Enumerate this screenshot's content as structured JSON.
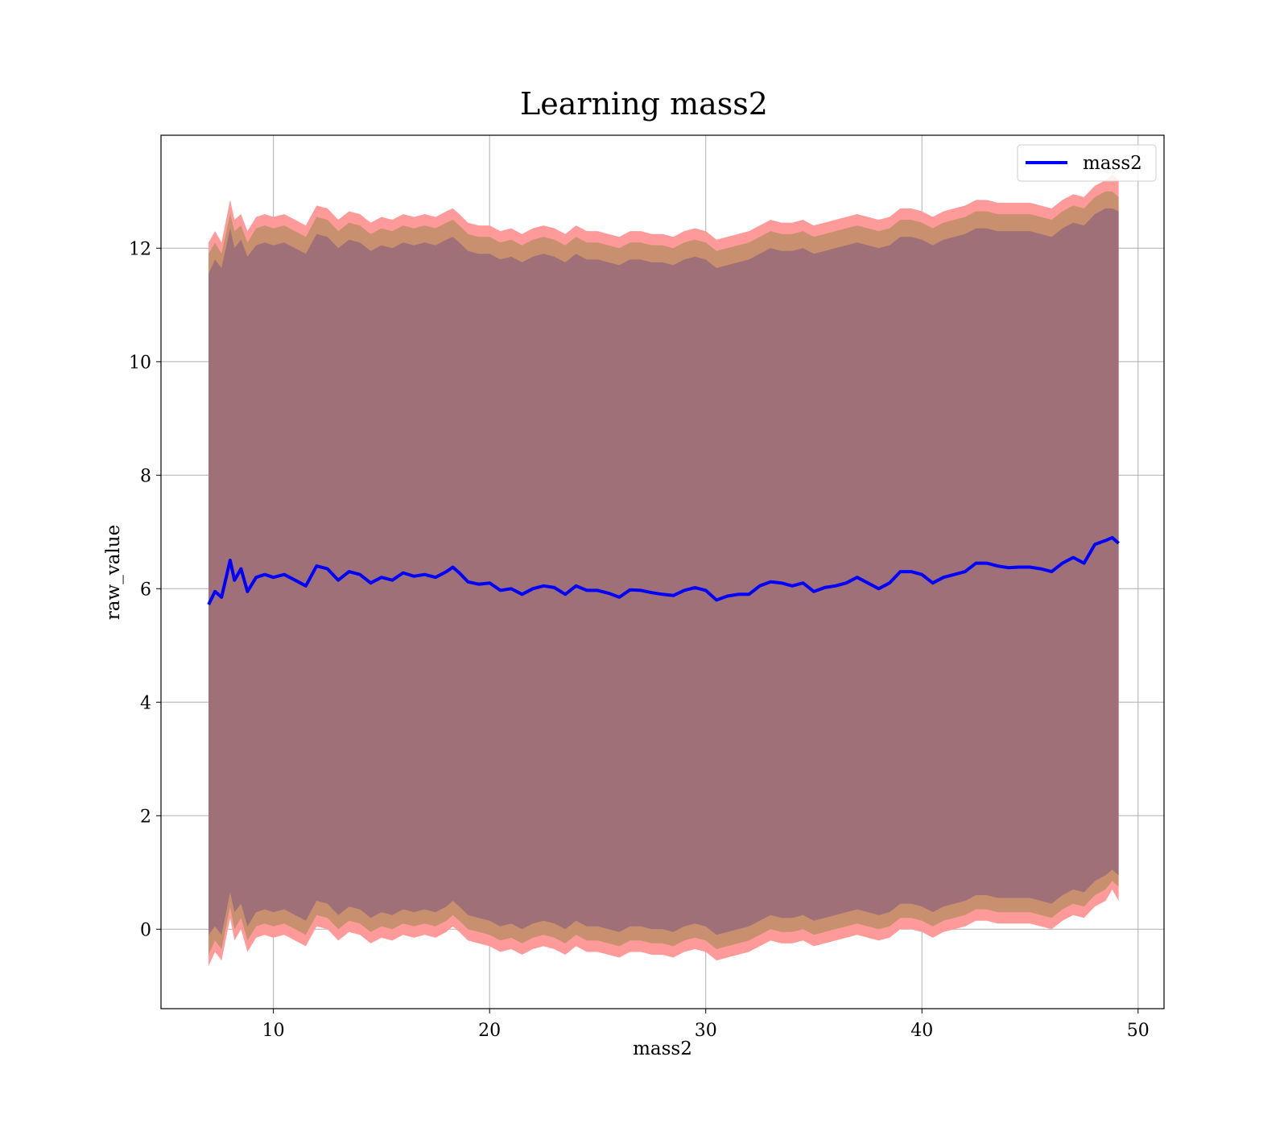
{
  "chart_data": {
    "type": "area",
    "title": "Learning mass2",
    "xlabel": "mass2",
    "ylabel": "raw_value",
    "xlim": [
      4.8,
      51.2
    ],
    "ylim": [
      -1.4,
      13.99
    ],
    "xticks": [
      10,
      20,
      30,
      40,
      50
    ],
    "yticks": [
      0,
      2,
      4,
      6,
      8,
      10,
      12
    ],
    "grid": true,
    "legend": {
      "position": "top-right",
      "entries": [
        "mass2"
      ]
    },
    "colors": {
      "line": "#0000ff",
      "band_outer": "#ff9a9a",
      "band_middle": "#c8906e",
      "band_inner": "#a07078",
      "grid": "#b0b0b0"
    },
    "series": [
      {
        "name": "mass2",
        "x": [
          7.0,
          7.3,
          7.6,
          8.0,
          8.2,
          8.5,
          8.8,
          9.2,
          9.6,
          10.0,
          10.5,
          11.0,
          11.5,
          12.0,
          12.5,
          13.0,
          13.5,
          14.0,
          14.5,
          15.0,
          15.5,
          16.0,
          16.5,
          17.0,
          17.5,
          18.0,
          18.3,
          18.6,
          19.0,
          19.5,
          20.0,
          20.5,
          21.0,
          21.5,
          22.0,
          22.5,
          23.0,
          23.5,
          24.0,
          24.5,
          25.0,
          25.5,
          26.0,
          26.5,
          27.0,
          27.5,
          28.0,
          28.5,
          29.0,
          29.5,
          30.0,
          30.5,
          31.0,
          31.5,
          32.0,
          32.5,
          33.0,
          33.5,
          34.0,
          34.5,
          35.0,
          35.5,
          36.0,
          36.5,
          37.0,
          37.5,
          38.0,
          38.5,
          39.0,
          39.5,
          40.0,
          40.5,
          41.0,
          41.5,
          42.0,
          42.5,
          43.0,
          43.5,
          44.0,
          44.5,
          45.0,
          45.5,
          46.0,
          46.5,
          47.0,
          47.5,
          48.0,
          48.5,
          48.8,
          49.1
        ],
        "mean": [
          5.72,
          5.95,
          5.85,
          6.5,
          6.15,
          6.35,
          5.95,
          6.2,
          6.25,
          6.2,
          6.25,
          6.15,
          6.05,
          6.4,
          6.35,
          6.15,
          6.3,
          6.25,
          6.1,
          6.2,
          6.15,
          6.28,
          6.22,
          6.25,
          6.2,
          6.3,
          6.38,
          6.28,
          6.12,
          6.08,
          6.1,
          5.97,
          6.0,
          5.9,
          6.0,
          6.05,
          6.02,
          5.9,
          6.05,
          5.97,
          5.97,
          5.92,
          5.85,
          5.98,
          5.97,
          5.93,
          5.9,
          5.88,
          5.97,
          6.02,
          5.97,
          5.8,
          5.87,
          5.9,
          5.9,
          6.05,
          6.12,
          6.1,
          6.05,
          6.1,
          5.95,
          6.02,
          6.05,
          6.1,
          6.2,
          6.1,
          6.0,
          6.1,
          6.3,
          6.3,
          6.25,
          6.1,
          6.2,
          6.25,
          6.3,
          6.45,
          6.45,
          6.4,
          6.37,
          6.38,
          6.38,
          6.35,
          6.3,
          6.45,
          6.55,
          6.45,
          6.78,
          6.85,
          6.9,
          6.8
        ],
        "band_outer_upper": [
          12.1,
          12.3,
          12.1,
          12.85,
          12.5,
          12.6,
          12.3,
          12.55,
          12.6,
          12.55,
          12.6,
          12.5,
          12.4,
          12.75,
          12.7,
          12.5,
          12.65,
          12.6,
          12.45,
          12.55,
          12.5,
          12.6,
          12.55,
          12.6,
          12.55,
          12.65,
          12.7,
          12.6,
          12.45,
          12.4,
          12.4,
          12.3,
          12.35,
          12.25,
          12.35,
          12.4,
          12.35,
          12.25,
          12.4,
          12.3,
          12.3,
          12.25,
          12.2,
          12.3,
          12.3,
          12.25,
          12.25,
          12.2,
          12.3,
          12.35,
          12.3,
          12.15,
          12.2,
          12.25,
          12.3,
          12.4,
          12.5,
          12.45,
          12.45,
          12.5,
          12.4,
          12.45,
          12.5,
          12.55,
          12.6,
          12.55,
          12.5,
          12.55,
          12.7,
          12.7,
          12.65,
          12.55,
          12.65,
          12.7,
          12.75,
          12.85,
          12.85,
          12.8,
          12.8,
          12.8,
          12.8,
          12.75,
          12.7,
          12.85,
          12.95,
          12.9,
          13.1,
          13.2,
          13.3,
          13.2
        ],
        "band_outer_lower": [
          -0.65,
          -0.4,
          -0.55,
          0.2,
          -0.2,
          0.0,
          -0.4,
          -0.15,
          -0.1,
          -0.15,
          -0.1,
          -0.2,
          -0.3,
          0.05,
          0.0,
          -0.2,
          -0.05,
          -0.1,
          -0.25,
          -0.15,
          -0.2,
          -0.1,
          -0.15,
          -0.1,
          -0.15,
          -0.05,
          0.05,
          -0.05,
          -0.2,
          -0.25,
          -0.3,
          -0.4,
          -0.35,
          -0.45,
          -0.35,
          -0.3,
          -0.35,
          -0.45,
          -0.3,
          -0.4,
          -0.4,
          -0.45,
          -0.5,
          -0.4,
          -0.4,
          -0.45,
          -0.45,
          -0.5,
          -0.4,
          -0.35,
          -0.4,
          -0.55,
          -0.5,
          -0.45,
          -0.4,
          -0.3,
          -0.2,
          -0.25,
          -0.25,
          -0.2,
          -0.3,
          -0.25,
          -0.2,
          -0.15,
          -0.1,
          -0.15,
          -0.2,
          -0.15,
          0.0,
          0.0,
          -0.05,
          -0.15,
          -0.05,
          0.0,
          0.05,
          0.15,
          0.15,
          0.1,
          0.1,
          0.1,
          0.1,
          0.05,
          0.0,
          0.15,
          0.25,
          0.2,
          0.4,
          0.5,
          0.7,
          0.5
        ],
        "band_middle_upper": [
          11.9,
          12.1,
          11.9,
          12.6,
          12.3,
          12.4,
          12.1,
          12.35,
          12.4,
          12.35,
          12.4,
          12.3,
          12.2,
          12.55,
          12.5,
          12.3,
          12.45,
          12.4,
          12.25,
          12.35,
          12.3,
          12.4,
          12.35,
          12.4,
          12.35,
          12.45,
          12.5,
          12.4,
          12.25,
          12.2,
          12.2,
          12.1,
          12.15,
          12.05,
          12.15,
          12.2,
          12.15,
          12.05,
          12.2,
          12.1,
          12.1,
          12.05,
          12.0,
          12.1,
          12.1,
          12.05,
          12.05,
          12.0,
          12.1,
          12.15,
          12.1,
          11.95,
          12.0,
          12.05,
          12.1,
          12.2,
          12.3,
          12.25,
          12.25,
          12.3,
          12.2,
          12.25,
          12.3,
          12.35,
          12.4,
          12.35,
          12.3,
          12.35,
          12.5,
          12.5,
          12.45,
          12.35,
          12.45,
          12.5,
          12.55,
          12.65,
          12.65,
          12.6,
          12.6,
          12.6,
          12.6,
          12.55,
          12.5,
          12.65,
          12.75,
          12.7,
          12.9,
          13.0,
          13.0,
          12.9
        ],
        "band_middle_lower": [
          -0.45,
          -0.2,
          -0.35,
          0.4,
          0.0,
          0.2,
          -0.2,
          0.05,
          0.1,
          0.05,
          0.1,
          0.0,
          -0.1,
          0.25,
          0.2,
          0.0,
          0.15,
          0.1,
          -0.05,
          0.05,
          0.0,
          0.1,
          0.05,
          0.1,
          0.05,
          0.15,
          0.25,
          0.15,
          0.0,
          -0.05,
          -0.1,
          -0.2,
          -0.15,
          -0.25,
          -0.15,
          -0.1,
          -0.15,
          -0.25,
          -0.1,
          -0.2,
          -0.2,
          -0.25,
          -0.3,
          -0.2,
          -0.2,
          -0.25,
          -0.25,
          -0.3,
          -0.2,
          -0.15,
          -0.2,
          -0.35,
          -0.3,
          -0.25,
          -0.2,
          -0.1,
          0.0,
          -0.05,
          -0.05,
          0.0,
          -0.1,
          -0.05,
          0.0,
          0.05,
          0.1,
          0.05,
          0.0,
          0.05,
          0.2,
          0.2,
          0.15,
          0.05,
          0.15,
          0.2,
          0.25,
          0.35,
          0.35,
          0.3,
          0.3,
          0.3,
          0.3,
          0.25,
          0.2,
          0.35,
          0.45,
          0.4,
          0.6,
          0.7,
          0.85,
          0.75
        ],
        "band_inner_upper": [
          11.55,
          11.8,
          11.65,
          12.35,
          12.0,
          12.15,
          11.85,
          12.05,
          12.1,
          12.05,
          12.1,
          12.0,
          11.9,
          12.25,
          12.2,
          12.0,
          12.15,
          12.1,
          11.95,
          12.05,
          12.0,
          12.1,
          12.05,
          12.1,
          12.05,
          12.15,
          12.2,
          12.1,
          11.95,
          11.9,
          11.9,
          11.8,
          11.85,
          11.75,
          11.85,
          11.9,
          11.85,
          11.75,
          11.9,
          11.8,
          11.8,
          11.75,
          11.7,
          11.8,
          11.8,
          11.75,
          11.75,
          11.7,
          11.8,
          11.85,
          11.8,
          11.65,
          11.7,
          11.75,
          11.8,
          11.9,
          12.0,
          11.95,
          11.95,
          12.0,
          11.9,
          11.95,
          12.0,
          12.05,
          12.1,
          12.05,
          12.0,
          12.05,
          12.2,
          12.2,
          12.15,
          12.05,
          12.15,
          12.2,
          12.25,
          12.35,
          12.35,
          12.3,
          12.3,
          12.3,
          12.3,
          12.25,
          12.2,
          12.35,
          12.45,
          12.4,
          12.6,
          12.7,
          12.7,
          12.65
        ],
        "band_inner_lower": [
          -0.1,
          0.05,
          -0.1,
          0.65,
          0.3,
          0.45,
          0.05,
          0.3,
          0.35,
          0.3,
          0.35,
          0.25,
          0.15,
          0.5,
          0.45,
          0.25,
          0.4,
          0.35,
          0.2,
          0.3,
          0.25,
          0.35,
          0.3,
          0.35,
          0.3,
          0.4,
          0.5,
          0.4,
          0.25,
          0.2,
          0.15,
          0.05,
          0.1,
          0.0,
          0.1,
          0.15,
          0.1,
          0.0,
          0.15,
          0.05,
          0.05,
          0.0,
          -0.05,
          0.05,
          0.05,
          0.0,
          0.0,
          -0.05,
          0.05,
          0.1,
          0.05,
          -0.1,
          -0.05,
          0.0,
          0.05,
          0.15,
          0.25,
          0.2,
          0.2,
          0.25,
          0.15,
          0.2,
          0.25,
          0.3,
          0.35,
          0.3,
          0.25,
          0.3,
          0.45,
          0.45,
          0.4,
          0.3,
          0.4,
          0.45,
          0.5,
          0.6,
          0.6,
          0.55,
          0.55,
          0.55,
          0.55,
          0.5,
          0.45,
          0.6,
          0.7,
          0.65,
          0.85,
          0.95,
          1.05,
          0.95
        ]
      }
    ]
  }
}
